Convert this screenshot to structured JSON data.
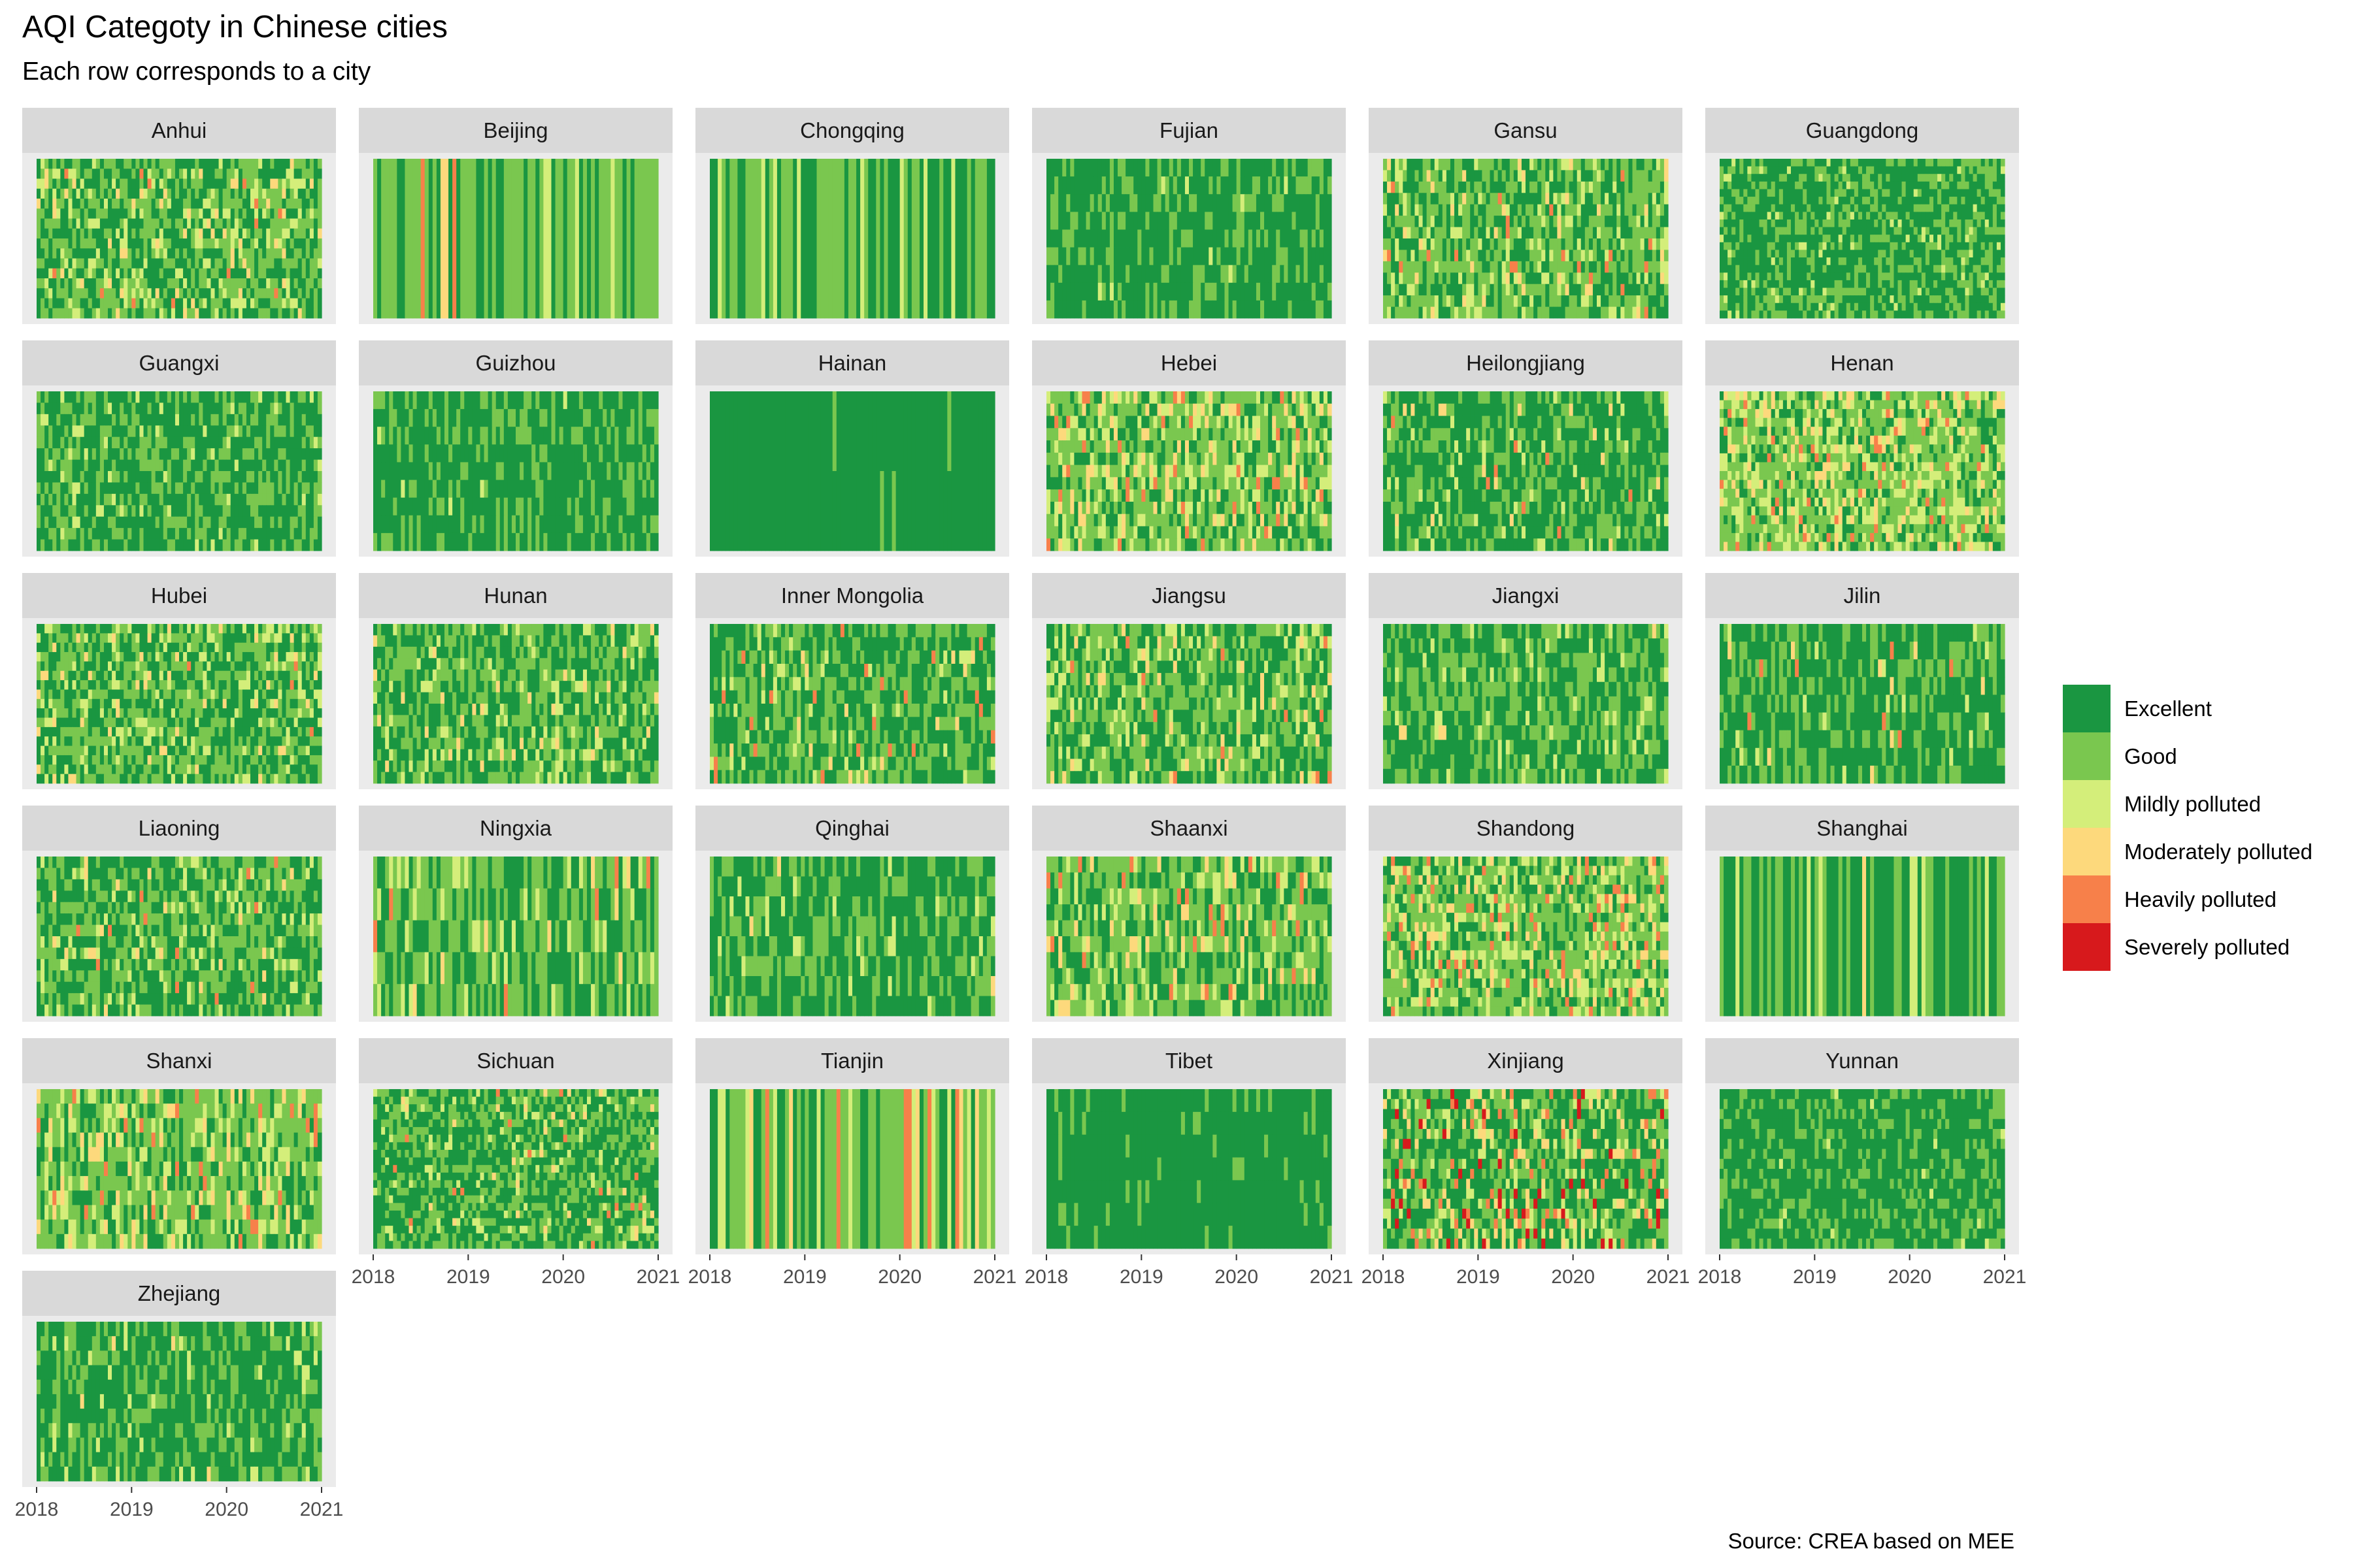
{
  "title": "AQI Categoty in Chinese cities",
  "subtitle": "Each row corresponds to a city",
  "caption": "Source: CREA based on MEE",
  "legend": {
    "items": [
      {
        "label": "Excellent",
        "color": "#1A9641"
      },
      {
        "label": "Good",
        "color": "#7AC74F"
      },
      {
        "label": "Mildly polluted",
        "color": "#D4EE7A"
      },
      {
        "label": "Moderately polluted",
        "color": "#FDD97C"
      },
      {
        "label": "Heavily polluted",
        "color": "#F7804A"
      },
      {
        "label": "Severely polluted",
        "color": "#D7191C"
      }
    ]
  },
  "chart_data": {
    "type": "heatmap",
    "x_ticks": [
      "2018",
      "2019",
      "2020",
      "2021"
    ],
    "xlim": [
      "2018-01-01",
      "2021-01-01"
    ],
    "categories": [
      "Excellent",
      "Good",
      "Mildly polluted",
      "Moderately polluted",
      "Heavily polluted",
      "Severely polluted"
    ],
    "panels": [
      {
        "name": "Anhui",
        "cities": 16,
        "profile": [
          0.42,
          0.4,
          0.12,
          0.05,
          0.01,
          0.0
        ]
      },
      {
        "name": "Beijing",
        "cities": 1,
        "profile": [
          0.3,
          0.42,
          0.17,
          0.08,
          0.03,
          0.0
        ]
      },
      {
        "name": "Chongqing",
        "cities": 1,
        "profile": [
          0.4,
          0.45,
          0.12,
          0.03,
          0.0,
          0.0
        ]
      },
      {
        "name": "Fujian",
        "cities": 9,
        "profile": [
          0.72,
          0.27,
          0.01,
          0.0,
          0.0,
          0.0
        ]
      },
      {
        "name": "Gansu",
        "cities": 14,
        "profile": [
          0.35,
          0.45,
          0.14,
          0.04,
          0.02,
          0.0
        ]
      },
      {
        "name": "Guangdong",
        "cities": 21,
        "profile": [
          0.6,
          0.36,
          0.04,
          0.0,
          0.0,
          0.0
        ]
      },
      {
        "name": "Guangxi",
        "cities": 14,
        "profile": [
          0.6,
          0.36,
          0.04,
          0.0,
          0.0,
          0.0
        ]
      },
      {
        "name": "Guizhou",
        "cities": 9,
        "profile": [
          0.72,
          0.27,
          0.01,
          0.0,
          0.0,
          0.0
        ]
      },
      {
        "name": "Hainan",
        "cities": 2,
        "profile": [
          0.96,
          0.04,
          0.0,
          0.0,
          0.0,
          0.0
        ]
      },
      {
        "name": "Hebei",
        "cities": 13,
        "profile": [
          0.25,
          0.45,
          0.18,
          0.08,
          0.04,
          0.0
        ]
      },
      {
        "name": "Heilongjiang",
        "cities": 13,
        "profile": [
          0.62,
          0.3,
          0.05,
          0.02,
          0.01,
          0.0
        ]
      },
      {
        "name": "Henan",
        "cities": 18,
        "profile": [
          0.2,
          0.45,
          0.22,
          0.09,
          0.04,
          0.0
        ]
      },
      {
        "name": "Hubei",
        "cities": 17,
        "profile": [
          0.42,
          0.4,
          0.12,
          0.05,
          0.01,
          0.0
        ]
      },
      {
        "name": "Hunan",
        "cities": 14,
        "profile": [
          0.48,
          0.4,
          0.09,
          0.03,
          0.0,
          0.0
        ]
      },
      {
        "name": "Inner Mongolia",
        "cities": 12,
        "profile": [
          0.52,
          0.38,
          0.06,
          0.02,
          0.02,
          0.0
        ]
      },
      {
        "name": "Jiangsu",
        "cities": 13,
        "profile": [
          0.38,
          0.42,
          0.14,
          0.05,
          0.01,
          0.0
        ]
      },
      {
        "name": "Jiangxi",
        "cities": 11,
        "profile": [
          0.52,
          0.4,
          0.07,
          0.01,
          0.0,
          0.0
        ]
      },
      {
        "name": "Jilin",
        "cities": 9,
        "profile": [
          0.62,
          0.3,
          0.05,
          0.02,
          0.01,
          0.0
        ]
      },
      {
        "name": "Liaoning",
        "cities": 14,
        "profile": [
          0.5,
          0.38,
          0.08,
          0.03,
          0.01,
          0.0
        ]
      },
      {
        "name": "Ningxia",
        "cities": 5,
        "profile": [
          0.4,
          0.45,
          0.1,
          0.03,
          0.02,
          0.0
        ]
      },
      {
        "name": "Qinghai",
        "cities": 8,
        "profile": [
          0.62,
          0.33,
          0.04,
          0.01,
          0.0,
          0.0
        ]
      },
      {
        "name": "Shaanxi",
        "cities": 10,
        "profile": [
          0.32,
          0.45,
          0.14,
          0.06,
          0.03,
          0.0
        ]
      },
      {
        "name": "Shandong",
        "cities": 17,
        "profile": [
          0.25,
          0.45,
          0.18,
          0.08,
          0.04,
          0.0
        ]
      },
      {
        "name": "Shanghai",
        "cities": 1,
        "profile": [
          0.45,
          0.42,
          0.11,
          0.02,
          0.0,
          0.0
        ]
      },
      {
        "name": "Shanxi",
        "cities": 11,
        "profile": [
          0.25,
          0.45,
          0.18,
          0.08,
          0.04,
          0.0
        ]
      },
      {
        "name": "Sichuan",
        "cities": 21,
        "profile": [
          0.55,
          0.35,
          0.07,
          0.02,
          0.01,
          0.0
        ]
      },
      {
        "name": "Tianjin",
        "cities": 1,
        "profile": [
          0.25,
          0.45,
          0.18,
          0.08,
          0.04,
          0.0
        ]
      },
      {
        "name": "Tibet",
        "cities": 7,
        "profile": [
          0.92,
          0.08,
          0.0,
          0.0,
          0.0,
          0.0
        ]
      },
      {
        "name": "Xinjiang",
        "cities": 16,
        "profile": [
          0.45,
          0.28,
          0.1,
          0.07,
          0.06,
          0.04
        ]
      },
      {
        "name": "Yunnan",
        "cities": 16,
        "profile": [
          0.72,
          0.27,
          0.01,
          0.0,
          0.0,
          0.0
        ]
      },
      {
        "name": "Zhejiang",
        "cities": 11,
        "profile": [
          0.58,
          0.35,
          0.06,
          0.01,
          0.0,
          0.0
        ]
      }
    ]
  }
}
